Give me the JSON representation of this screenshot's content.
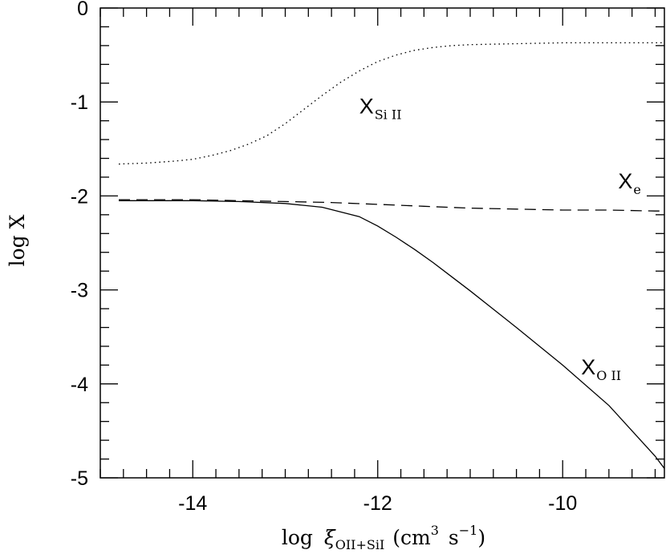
{
  "chart_data": {
    "type": "line",
    "xlabel": "log",
    "xlabel_symbol": "ξ",
    "xlabel_subscript": "OII+SiI",
    "xlabel_units_open": "(cm",
    "xlabel_units_cm_exp": "3",
    "xlabel_units_s": "s",
    "xlabel_units_s_exp": "−1",
    "xlabel_units_close": ")",
    "ylabel": "log X",
    "xlim": [
      -15,
      -8.9
    ],
    "ylim": [
      -5,
      0
    ],
    "xticks": [
      -14,
      -12,
      -10
    ],
    "xtick_labels": [
      "-14",
      "-12",
      "-10"
    ],
    "yticks": [
      0,
      -1,
      -2,
      -3,
      -4,
      -5
    ],
    "ytick_labels": [
      "0",
      "-1",
      "-2",
      "-3",
      "-4",
      "-5"
    ],
    "grid": false,
    "series": [
      {
        "name": "X",
        "name_sub": "Si II",
        "style": "dotted",
        "label_pos": [
          -12.2,
          -1.12
        ],
        "x": [
          -14.8,
          -14.5,
          -14.2,
          -14.0,
          -13.8,
          -13.6,
          -13.4,
          -13.2,
          -13.0,
          -12.8,
          -12.6,
          -12.4,
          -12.2,
          -12.0,
          -11.8,
          -11.6,
          -11.4,
          -11.2,
          -11.0,
          -10.5,
          -10.0,
          -9.5,
          -9.0,
          -8.9
        ],
        "y": [
          -1.66,
          -1.65,
          -1.63,
          -1.61,
          -1.57,
          -1.52,
          -1.45,
          -1.36,
          -1.23,
          -1.08,
          -0.93,
          -0.79,
          -0.67,
          -0.57,
          -0.5,
          -0.45,
          -0.42,
          -0.4,
          -0.39,
          -0.38,
          -0.37,
          -0.37,
          -0.37,
          -0.37
        ]
      },
      {
        "name": "X",
        "name_sub": "e",
        "style": "dashed",
        "label_pos": [
          -9.4,
          -1.92
        ],
        "x": [
          -14.8,
          -14.0,
          -13.5,
          -13.0,
          -12.5,
          -12.0,
          -11.5,
          -11.0,
          -10.5,
          -10.0,
          -9.5,
          -9.0,
          -8.9
        ],
        "y": [
          -2.04,
          -2.04,
          -2.05,
          -2.06,
          -2.07,
          -2.09,
          -2.11,
          -2.13,
          -2.14,
          -2.15,
          -2.15,
          -2.16,
          -2.16
        ]
      },
      {
        "name": "X",
        "name_sub": "O II",
        "style": "solid",
        "label_pos": [
          -9.8,
          -3.9
        ],
        "x": [
          -14.8,
          -14.0,
          -13.5,
          -13.0,
          -12.6,
          -12.2,
          -12.0,
          -11.8,
          -11.6,
          -11.4,
          -11.2,
          -11.0,
          -10.5,
          -10.0,
          -9.5,
          -9.0,
          -8.9
        ],
        "y": [
          -2.05,
          -2.05,
          -2.06,
          -2.08,
          -2.12,
          -2.22,
          -2.32,
          -2.44,
          -2.57,
          -2.71,
          -2.86,
          -3.01,
          -3.4,
          -3.8,
          -4.23,
          -4.77,
          -4.9
        ]
      }
    ]
  }
}
